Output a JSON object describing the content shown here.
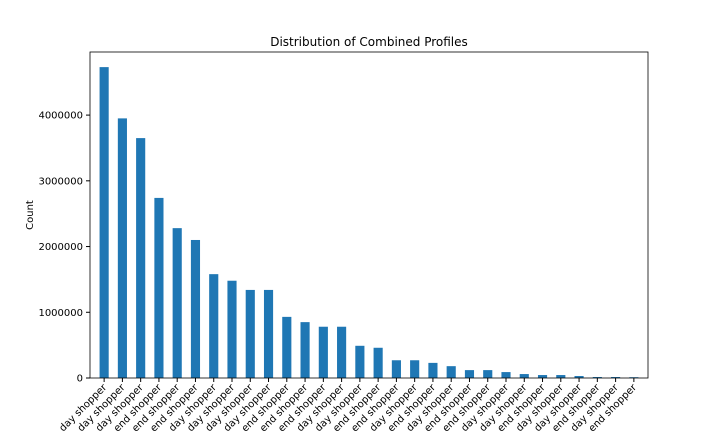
{
  "chart_data": {
    "type": "bar",
    "title": "Distribution of Combined Profiles",
    "y_label": "Count",
    "categories": [
      "day shopper",
      "day shopper",
      "day shopper",
      "end shopper",
      "end shopper",
      "end shopper",
      "day shopper",
      "day shopper",
      "day shopper",
      "day shopper",
      "end shopper",
      "end shopper",
      "end shopper",
      "day shopper",
      "day shopper",
      "end shopper",
      "end shopper",
      "day shopper",
      "end shopper",
      "day shopper",
      "end shopper",
      "end shopper",
      "day shopper",
      "day shopper",
      "end shopper",
      "day shopper",
      "day shopper",
      "end shopper",
      "day shopper",
      "end shopper"
    ],
    "values": [
      4730000,
      3950000,
      3650000,
      2740000,
      2280000,
      2100000,
      1580000,
      1480000,
      1340000,
      1340000,
      930000,
      850000,
      780000,
      780000,
      490000,
      460000,
      270000,
      270000,
      230000,
      180000,
      120000,
      120000,
      90000,
      60000,
      45000,
      45000,
      30000,
      15000,
      15000,
      12000
    ],
    "color": "#1f77b4",
    "ylim": [
      0,
      4960000
    ],
    "yticks": [
      0,
      1000000,
      2000000,
      3000000,
      4000000
    ],
    "grid": false
  }
}
